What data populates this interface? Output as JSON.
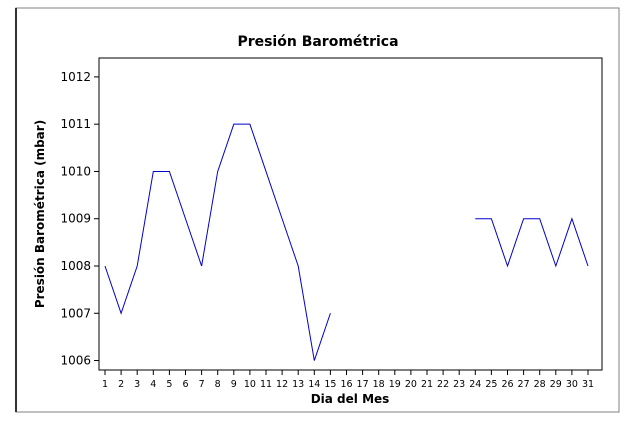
{
  "chart_data": {
    "type": "line",
    "title": "Presión Barométrica",
    "xlabel": "Dia del Mes",
    "ylabel": "Presión Barométrica (mbar)",
    "x": [
      1,
      2,
      3,
      4,
      5,
      6,
      7,
      8,
      9,
      10,
      11,
      12,
      13,
      14,
      15,
      16,
      17,
      18,
      19,
      20,
      21,
      22,
      23,
      24,
      25,
      26,
      27,
      28,
      29,
      30,
      31
    ],
    "xticks": [
      "1",
      "2",
      "3",
      "4",
      "5",
      "6",
      "7",
      "8",
      "9",
      "10",
      "11",
      "12",
      "13",
      "14",
      "15",
      "16",
      "17",
      "18",
      "19",
      "20",
      "21",
      "22",
      "23",
      "24",
      "25",
      "26",
      "27",
      "28",
      "29",
      "30",
      "31"
    ],
    "yticks": [
      "1006",
      "1007",
      "1008",
      "1009",
      "1010",
      "1011",
      "1012"
    ],
    "xlim": [
      1,
      31
    ],
    "ylim": [
      1005.8,
      1012.4
    ],
    "grid": false,
    "series": [
      {
        "color": "#0000cc",
        "values": [
          1008,
          1007,
          1008,
          1010,
          1010,
          1009,
          1008,
          1010,
          1011,
          1011,
          1010,
          1009,
          1008,
          1006,
          1007,
          null,
          null,
          null,
          null,
          null,
          null,
          null,
          null,
          1009,
          1009,
          1008,
          1009,
          1009,
          1008,
          1009,
          1008
        ]
      }
    ]
  }
}
